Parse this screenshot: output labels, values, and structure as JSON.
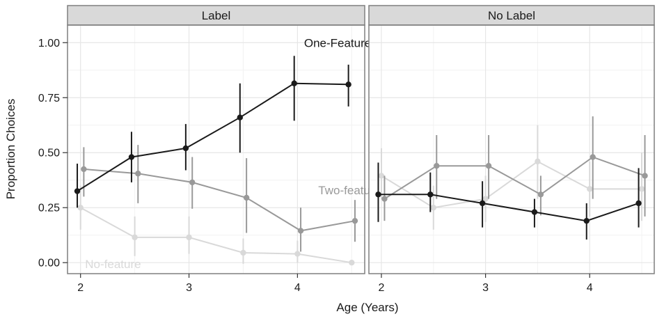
{
  "chart_data": {
    "type": "line",
    "xlabel": "Age (Years)",
    "ylabel": "Proportion Choices",
    "xlim": [
      1.88,
      4.62
    ],
    "ylim": [
      -0.05,
      1.08
    ],
    "x_ticks": [
      2,
      3,
      4
    ],
    "x_tick_labels": [
      "2",
      "3",
      "4"
    ],
    "y_ticks": [
      0,
      0.25,
      0.5,
      0.75,
      1.0
    ],
    "y_tick_labels": [
      "0.00",
      "0.25",
      "0.50",
      "0.75",
      "1.00"
    ],
    "grid": true,
    "series_colors": {
      "one": "#1a1a1a",
      "two": "#999999",
      "none": "#d9d9d9"
    },
    "panels": [
      {
        "title": "Label",
        "series": [
          {
            "key": "one",
            "name": "One-Feature",
            "points": [
              {
                "x": 1.97,
                "y": 0.325,
                "lo": 0.25,
                "hi": 0.45
              },
              {
                "x": 2.47,
                "y": 0.48,
                "lo": 0.365,
                "hi": 0.595
              },
              {
                "x": 2.97,
                "y": 0.52,
                "lo": 0.42,
                "hi": 0.63
              },
              {
                "x": 3.47,
                "y": 0.66,
                "lo": 0.5,
                "hi": 0.815
              },
              {
                "x": 3.97,
                "y": 0.815,
                "lo": 0.645,
                "hi": 0.94
              },
              {
                "x": 4.47,
                "y": 0.81,
                "lo": 0.71,
                "hi": 0.9
              }
            ]
          },
          {
            "key": "two",
            "name": "Two-feature",
            "points": [
              {
                "x": 2.03,
                "y": 0.425,
                "lo": 0.3,
                "hi": 0.525
              },
              {
                "x": 2.53,
                "y": 0.405,
                "lo": 0.27,
                "hi": 0.535
              },
              {
                "x": 3.03,
                "y": 0.365,
                "lo": 0.245,
                "hi": 0.48
              },
              {
                "x": 3.53,
                "y": 0.295,
                "lo": 0.135,
                "hi": 0.475
              },
              {
                "x": 4.03,
                "y": 0.145,
                "lo": 0.05,
                "hi": 0.25
              },
              {
                "x": 4.53,
                "y": 0.19,
                "lo": 0.095,
                "hi": 0.285
              }
            ]
          },
          {
            "key": "none",
            "name": "No-feature",
            "points": [
              {
                "x": 2.0,
                "y": 0.25,
                "lo": 0.15,
                "hi": 0.35
              },
              {
                "x": 2.5,
                "y": 0.115,
                "lo": 0.03,
                "hi": 0.21
              },
              {
                "x": 3.0,
                "y": 0.115,
                "lo": 0.04,
                "hi": 0.21
              },
              {
                "x": 3.5,
                "y": 0.045,
                "lo": -0.005,
                "hi": 0.11
              },
              {
                "x": 4.0,
                "y": 0.04,
                "lo": 0.0,
                "hi": 0.1
              },
              {
                "x": 4.5,
                "y": 0.0,
                "lo": 0.0,
                "hi": 0.0
              }
            ]
          }
        ],
        "annotations": [
          {
            "text": "One-Feature",
            "x": 4.37,
            "y": 1.0,
            "series": "one"
          },
          {
            "text": "Two-feature",
            "x": 4.48,
            "y": 0.33,
            "series": "two"
          },
          {
            "text": "No-feature",
            "x": 2.3,
            "y": -0.005,
            "series": "none"
          }
        ]
      },
      {
        "title": "No Label",
        "series": [
          {
            "key": "one",
            "name": "One-Feature",
            "points": [
              {
                "x": 1.97,
                "y": 0.31,
                "lo": 0.185,
                "hi": 0.455
              },
              {
                "x": 2.47,
                "y": 0.31,
                "lo": 0.23,
                "hi": 0.41
              },
              {
                "x": 2.97,
                "y": 0.27,
                "lo": 0.16,
                "hi": 0.37
              },
              {
                "x": 3.47,
                "y": 0.23,
                "lo": 0.16,
                "hi": 0.29
              },
              {
                "x": 3.97,
                "y": 0.19,
                "lo": 0.105,
                "hi": 0.27
              },
              {
                "x": 4.47,
                "y": 0.27,
                "lo": 0.16,
                "hi": 0.43
              }
            ]
          },
          {
            "key": "two",
            "name": "Two-feature",
            "points": [
              {
                "x": 2.03,
                "y": 0.29,
                "lo": 0.19,
                "hi": 0.395
              },
              {
                "x": 2.53,
                "y": 0.44,
                "lo": 0.29,
                "hi": 0.58
              },
              {
                "x": 3.03,
                "y": 0.44,
                "lo": 0.29,
                "hi": 0.58
              },
              {
                "x": 3.53,
                "y": 0.31,
                "lo": 0.215,
                "hi": 0.395
              },
              {
                "x": 4.03,
                "y": 0.48,
                "lo": 0.29,
                "hi": 0.665
              },
              {
                "x": 4.53,
                "y": 0.395,
                "lo": 0.21,
                "hi": 0.58
              }
            ]
          },
          {
            "key": "none",
            "name": "No-feature",
            "points": [
              {
                "x": 2.0,
                "y": 0.395,
                "lo": 0.29,
                "hi": 0.52
              },
              {
                "x": 2.5,
                "y": 0.25,
                "lo": 0.15,
                "hi": 0.35
              },
              {
                "x": 3.0,
                "y": 0.29,
                "lo": 0.185,
                "hi": 0.395
              },
              {
                "x": 3.5,
                "y": 0.46,
                "lo": 0.29,
                "hi": 0.625
              },
              {
                "x": 4.0,
                "y": 0.335,
                "lo": 0.21,
                "hi": 0.46
              },
              {
                "x": 4.5,
                "y": 0.335,
                "lo": 0.19,
                "hi": 0.5
              }
            ]
          }
        ],
        "annotations": []
      }
    ]
  }
}
